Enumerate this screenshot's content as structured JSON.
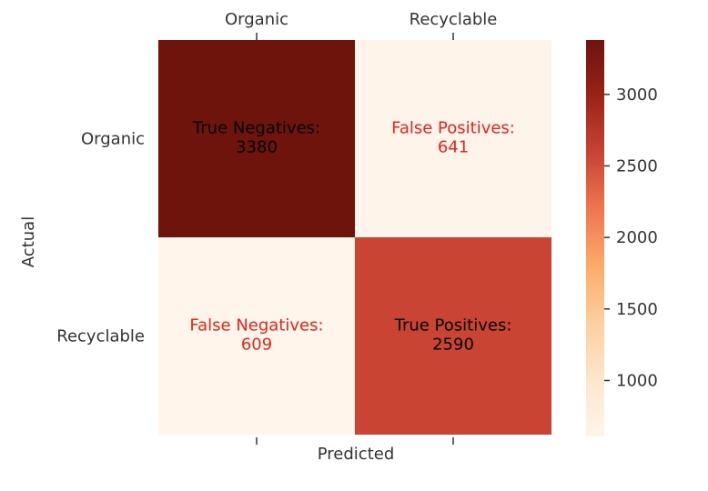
{
  "chart_data": {
    "type": "heatmap",
    "title": "",
    "xlabel": "Predicted",
    "ylabel": "Actual",
    "x_categories": [
      "Organic",
      "Recyclable"
    ],
    "y_categories": [
      "Organic",
      "Recyclable"
    ],
    "cells": [
      {
        "row": 0,
        "col": 0,
        "label": "True Negatives:",
        "value": 3380,
        "text_color": "#000000"
      },
      {
        "row": 0,
        "col": 1,
        "label": "False Positives:",
        "value": 641,
        "text_color": "#e8251b"
      },
      {
        "row": 1,
        "col": 0,
        "label": "False Negatives:",
        "value": 609,
        "text_color": "#e8251b"
      },
      {
        "row": 1,
        "col": 1,
        "label": "True Positives:",
        "value": 2590,
        "text_color": "#000000"
      }
    ],
    "colorbar": {
      "colormap": "Oranges-to-darkred",
      "min": 609,
      "max": 3380,
      "ticks": [
        1000,
        1500,
        2000,
        2500,
        3000
      ],
      "colors": {
        "low": "#fdf3e6",
        "max": "#6f130d",
        "mid_high": "#cb4534"
      }
    },
    "grid": false
  }
}
